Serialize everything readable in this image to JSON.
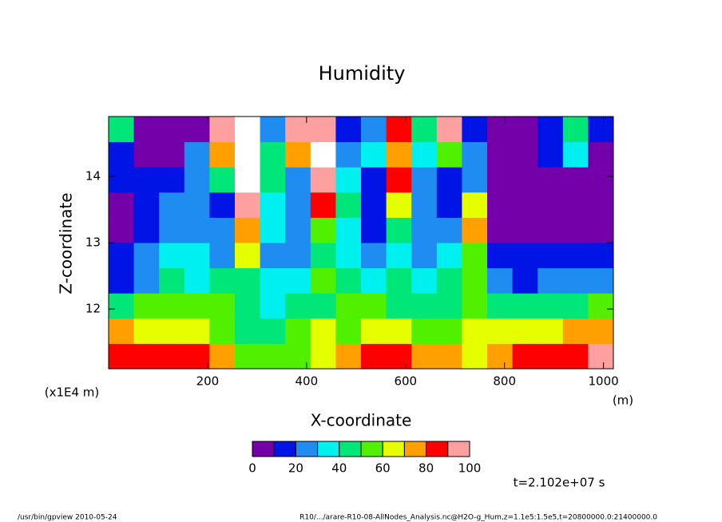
{
  "chart_data": {
    "type": "heatmap",
    "title": "Humidity",
    "xlabel": "X-coordinate",
    "ylabel": "Z-coordinate",
    "xunit": "(m)",
    "yunit": "(x1E4 m)",
    "x": [
      25.5,
      76.5,
      127.5,
      178.5,
      229.5,
      280.5,
      331.5,
      382.5,
      433.5,
      484.5,
      535.5,
      586.5,
      637.5,
      688.5,
      739.5,
      790.5,
      841.5,
      892.5,
      943.5,
      994.5
    ],
    "y": [
      11.29,
      11.67,
      12.05,
      12.43,
      12.81,
      13.19,
      13.57,
      13.95,
      14.33,
      14.71
    ],
    "z": [
      [
        85,
        82,
        80,
        85,
        70,
        55,
        50,
        55,
        65,
        70,
        85,
        80,
        75,
        70,
        65,
        78,
        80,
        85,
        88,
        92
      ],
      [
        70,
        65,
        62,
        60,
        55,
        45,
        40,
        50,
        60,
        55,
        65,
        62,
        58,
        55,
        60,
        62,
        62,
        65,
        70,
        72
      ],
      [
        45,
        50,
        55,
        50,
        50,
        45,
        35,
        40,
        45,
        50,
        50,
        45,
        45,
        48,
        55,
        45,
        42,
        45,
        48,
        50
      ],
      [
        10,
        25,
        40,
        35,
        40,
        45,
        30,
        30,
        55,
        45,
        35,
        40,
        35,
        40,
        50,
        20,
        18,
        22,
        25,
        28
      ],
      [
        10,
        20,
        30,
        30,
        25,
        60,
        25,
        20,
        40,
        35,
        20,
        30,
        20,
        30,
        50,
        15,
        10,
        10,
        12,
        12
      ],
      [
        8,
        15,
        25,
        25,
        20,
        70,
        30,
        25,
        55,
        30,
        15,
        45,
        20,
        25,
        70,
        5,
        5,
        5,
        5,
        5
      ],
      [
        5,
        12,
        20,
        25,
        15,
        95,
        30,
        20,
        80,
        40,
        15,
        65,
        20,
        15,
        60,
        5,
        5,
        5,
        5,
        5
      ],
      [
        10,
        15,
        10,
        25,
        40,
        105,
        45,
        20,
        90,
        30,
        15,
        80,
        25,
        15,
        20,
        5,
        5,
        5,
        8,
        5
      ],
      [
        15,
        5,
        5,
        20,
        70,
        105,
        40,
        75,
        100,
        25,
        30,
        70,
        30,
        50,
        25,
        5,
        5,
        10,
        30,
        5
      ],
      [
        40,
        5,
        5,
        5,
        95,
        100,
        20,
        90,
        95,
        10,
        20,
        80,
        40,
        95,
        15,
        5,
        5,
        15,
        40,
        10
      ]
    ],
    "xlim": [
      0,
      1020
    ],
    "ylim": [
      11.1,
      14.9
    ],
    "xticks": [
      200,
      400,
      600,
      800,
      1000
    ],
    "yticks": [
      12,
      13,
      14
    ],
    "levels": [
      0,
      10,
      20,
      30,
      40,
      50,
      60,
      70,
      80,
      90,
      100
    ],
    "colors": [
      "#7300a8",
      "#0014e6",
      "#1e8cf0",
      "#00f0f0",
      "#00e678",
      "#50f000",
      "#e6ff00",
      "#ffa000",
      "#ff0000",
      "#ffa0a0"
    ],
    "over_color": "#ffffff",
    "colorbar_ticks": [
      0,
      20,
      40,
      60,
      80,
      100
    ],
    "time_label": "t=2.102e+07 s",
    "footer_left": "/usr/bin/gpview  2010-05-24",
    "footer_right": "R10/.../arare-R10-08-AllNodes_Analysis.nc@H2O-g_Hum,z=1.1e5:1.5e5,t=20800000.0:21400000.0"
  }
}
